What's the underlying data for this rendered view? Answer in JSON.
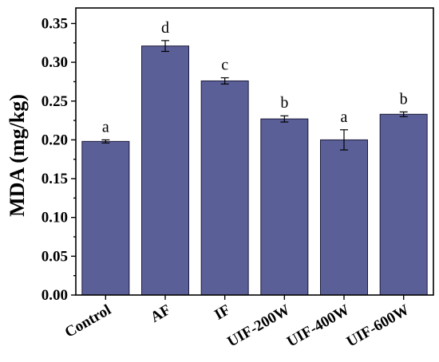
{
  "chart_data": {
    "type": "bar",
    "categories": [
      "Control",
      "AF",
      "IF",
      "UIF-200W",
      "UIF-400W",
      "UIF-600W"
    ],
    "values": [
      0.198,
      0.321,
      0.276,
      0.227,
      0.2,
      0.233
    ],
    "errors": [
      0.002,
      0.007,
      0.004,
      0.004,
      0.013,
      0.003
    ],
    "significance": [
      "a",
      "d",
      "c",
      "b",
      "a",
      "b"
    ],
    "ylabel": "MDA (mg/kg)",
    "xlabel": "",
    "title": "",
    "ylim": [
      0.0,
      0.37
    ],
    "yticks": [
      "0.00",
      "0.05",
      "0.10",
      "0.15",
      "0.20",
      "0.25",
      "0.30",
      "0.35"
    ],
    "grid": false,
    "bar_color": "#5b5f97"
  }
}
